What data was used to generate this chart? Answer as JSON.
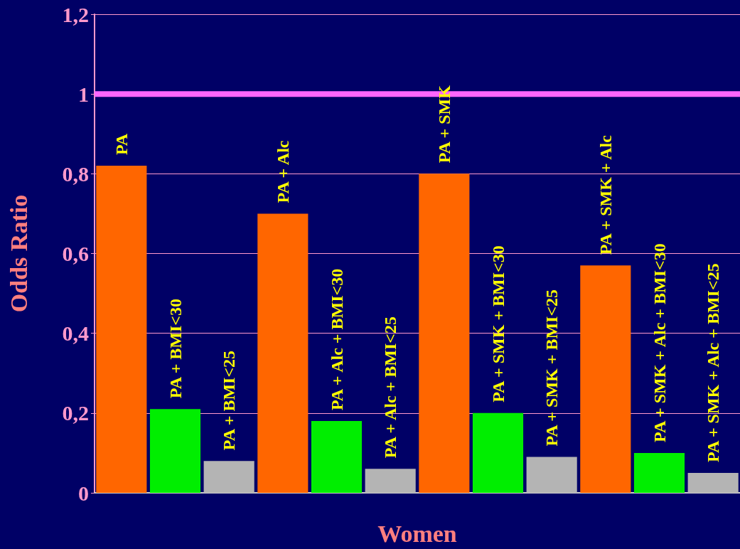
{
  "chart_data": {
    "type": "bar",
    "xlabel": "Women",
    "ylabel": "Odds Ratio",
    "categories": [
      "PA",
      "PA + BMI<30",
      "PA + BMI<25",
      "PA + Alc",
      "PA + Alc + BMI<30",
      "PA + Alc + BMI<25",
      "PA + SMK",
      "PA + SMK + BMI<30",
      "PA + SMK + BMI<25",
      "PA + SMK + Alc",
      "PA + SMK + Alc + BMI<30",
      "PA + SMK + Alc + BMI<25"
    ],
    "values": [
      0.82,
      0.21,
      0.08,
      0.7,
      0.18,
      0.06,
      0.8,
      0.2,
      0.09,
      0.57,
      0.1,
      0.05
    ],
    "colors": [
      "#ff6600",
      "#00ee00",
      "#b4b4b4",
      "#ff6600",
      "#00ee00",
      "#b4b4b4",
      "#ff6600",
      "#00ee00",
      "#b4b4b4",
      "#ff6600",
      "#00ee00",
      "#b4b4b4"
    ],
    "ylim": [
      0,
      1.2
    ],
    "yticks": [
      0,
      {
        "value": 0.2,
        "label": "0,2"
      },
      {
        "value": 0.4,
        "label": "0,4"
      },
      {
        "value": 0.6,
        "label": "0,6"
      },
      {
        "value": 0.8,
        "label": "0,8"
      },
      1,
      {
        "value": 1.2,
        "label": "1,2"
      }
    ],
    "grid": "y",
    "ref_lines": [
      {
        "axis": "y",
        "value": 1,
        "color": "#ff66ff",
        "line_style": "solid"
      }
    ]
  }
}
